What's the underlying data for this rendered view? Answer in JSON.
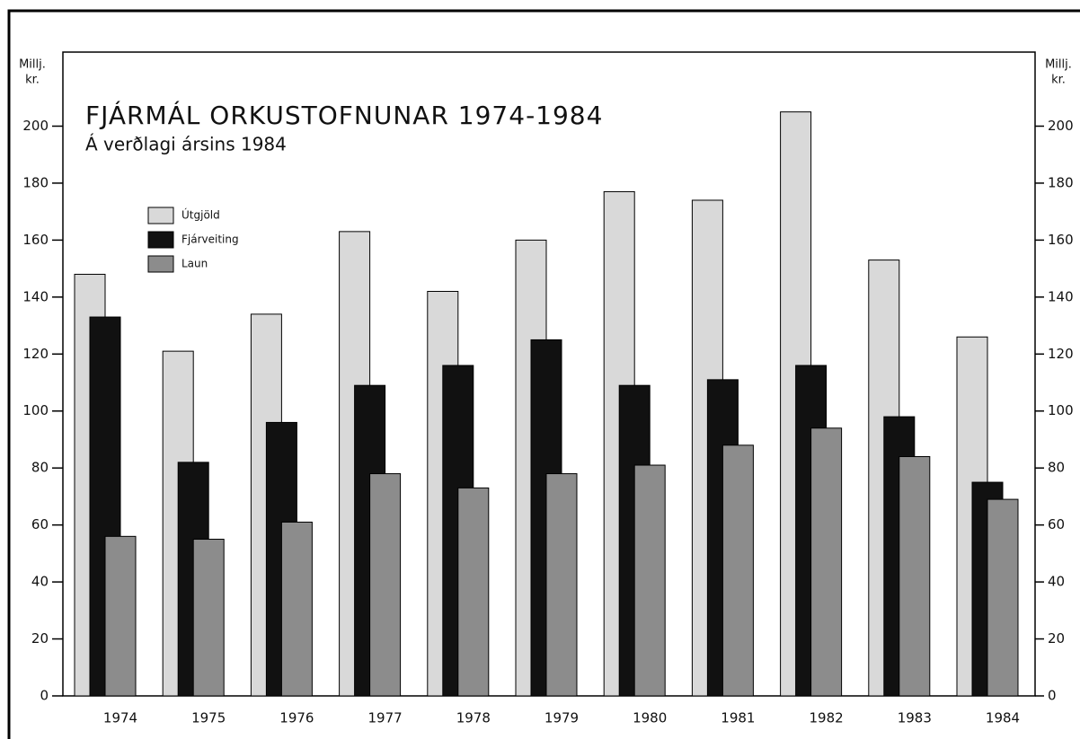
{
  "chart_data": {
    "type": "bar",
    "title": "FJÁRMÁL ORKUSTOFNUNAR 1974-1984",
    "subtitle": "Á verðlagi ársins 1984",
    "y_label": [
      "Millj.",
      "kr."
    ],
    "y2_label": [
      "Millj.",
      "kr."
    ],
    "categories": [
      "1974",
      "1975",
      "1976",
      "1977",
      "1978",
      "1979",
      "1980",
      "1981",
      "1982",
      "1983",
      "1984"
    ],
    "series": [
      {
        "name": "Útgjöld",
        "color": "#d9d9d9",
        "values": [
          148,
          121,
          134,
          163,
          142,
          160,
          177,
          174,
          205,
          153,
          126
        ]
      },
      {
        "name": "Fjárveiting",
        "color": "#111111",
        "values": [
          133,
          82,
          96,
          109,
          116,
          125,
          109,
          111,
          116,
          98,
          75
        ]
      },
      {
        "name": "Laun",
        "color": "#8c8c8c",
        "values": [
          56,
          55,
          61,
          78,
          73,
          78,
          81,
          88,
          94,
          84,
          69
        ]
      }
    ],
    "ylim": [
      0,
      226
    ],
    "yticks": [
      0,
      20,
      40,
      60,
      80,
      100,
      120,
      140,
      160,
      180,
      200
    ],
    "y2lim": [
      0,
      226
    ],
    "y2ticks": [
      0,
      20,
      40,
      60,
      80,
      100,
      120,
      140,
      160,
      180,
      200
    ],
    "legend": "upper left"
  }
}
